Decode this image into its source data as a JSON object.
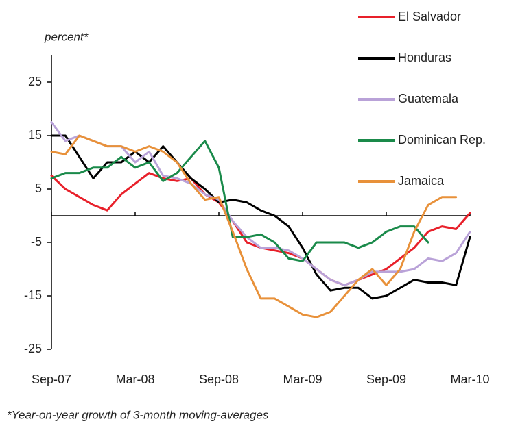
{
  "chart_data": {
    "type": "line",
    "y_label": "percent*",
    "note": "*Year-on-year growth of 3-month moving-averages",
    "categories": [
      "Sep-07",
      null,
      null,
      null,
      null,
      null,
      "Mar-08",
      null,
      null,
      null,
      null,
      null,
      "Sep-08",
      null,
      null,
      null,
      null,
      null,
      "Mar-09",
      null,
      null,
      null,
      null,
      null,
      "Sep-09",
      null,
      null,
      null,
      null,
      null,
      "Mar-10"
    ],
    "ylim": [
      -25,
      30
    ],
    "yticks": [
      -25,
      -15,
      -5,
      5,
      15,
      25
    ],
    "series": [
      {
        "name": "El Salvador",
        "color": "#e8202a",
        "values": [
          7.5,
          5,
          3.5,
          2,
          1,
          4,
          6,
          8,
          7,
          6.5,
          7,
          4,
          2.5,
          -1,
          -5,
          -6,
          -6.5,
          -7,
          -8,
          -10,
          -12,
          -13,
          -12,
          -11,
          -10,
          -8,
          -6,
          -3,
          -2,
          -2.5,
          0.5
        ]
      },
      {
        "name": "Honduras",
        "color": "#000000",
        "values": [
          15,
          15,
          11,
          7,
          10,
          10,
          12,
          10,
          13,
          10,
          7,
          5,
          2.5,
          3,
          2.5,
          1,
          0,
          -2,
          -6,
          -11,
          -14,
          -13.5,
          -13.5,
          -15.5,
          -15,
          -13.5,
          -12,
          -12.5,
          -12.5,
          -13,
          -4
        ]
      },
      {
        "name": "Guatemala",
        "color": "#b9a2d8",
        "values": [
          17.5,
          14,
          15,
          14,
          13,
          13,
          10,
          12,
          7.5,
          7,
          6,
          4,
          3,
          -1,
          -4,
          -6,
          -6,
          -6.5,
          -8,
          -10,
          -12,
          -13,
          -12,
          -10.5,
          -10.5,
          -10.5,
          -10,
          -8,
          -8.5,
          -7,
          -3
        ]
      },
      {
        "name": "Dominican Rep.",
        "color": "#1a8a4a",
        "values": [
          7,
          8,
          8,
          9,
          9,
          11,
          9,
          10,
          6.5,
          8,
          11,
          14,
          9,
          -4,
          -4,
          -3.5,
          -5,
          -8,
          -8.5,
          -5,
          -5,
          -5,
          -6,
          -5,
          -3,
          -2,
          -2,
          -5,
          null,
          null,
          null
        ]
      },
      {
        "name": "Jamaica",
        "color": "#e8913a",
        "values": [
          12,
          11.5,
          15,
          14,
          13,
          13,
          12,
          13,
          12,
          10,
          6,
          3,
          3.5,
          -3,
          -10,
          -15.5,
          -15.5,
          -17,
          -18.5,
          -19,
          -18,
          -15,
          -12,
          -10,
          -13,
          -10,
          -3,
          2,
          3.5,
          3.5,
          null
        ]
      }
    ]
  }
}
